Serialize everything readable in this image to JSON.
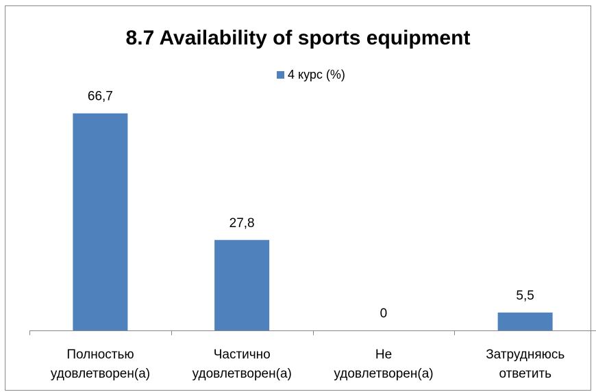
{
  "chart_data": {
    "type": "bar",
    "title": "8.7 Availability of sports equipment",
    "categories": [
      "Полностью\nудовлетворен(а)",
      "Частично\nудовлетворен(а)",
      "Не\nудовлетворен(а)",
      "Затрудняюсь\nответить"
    ],
    "series": [
      {
        "name": "4 курс (%)",
        "color": "#4f81bd",
        "values": [
          66.7,
          27.8,
          0,
          5.5
        ],
        "value_labels": [
          "66,7",
          "27,8",
          "0",
          "5,5"
        ]
      }
    ],
    "ylim": [
      0,
      70
    ],
    "legend": "top"
  }
}
